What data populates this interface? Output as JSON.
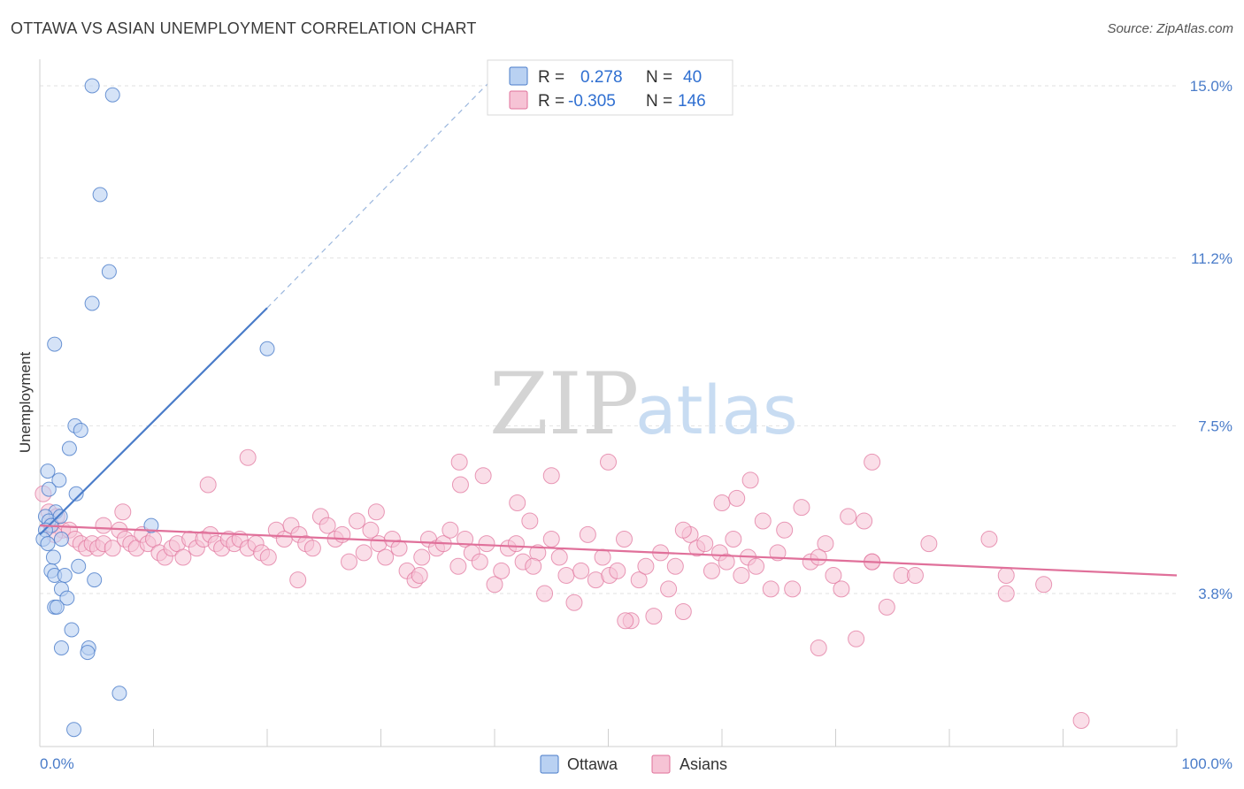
{
  "title": "OTTAWA VS ASIAN UNEMPLOYMENT CORRELATION CHART",
  "source": "Source: ZipAtlas.com",
  "watermark": {
    "zip": "ZIP",
    "atlas": "atlas"
  },
  "colors": {
    "ottawa": "#4a7cc9",
    "ottawa_fill": "#b9d1f2",
    "asians": "#e0709a",
    "asians_fill": "#f6c3d5",
    "tick_label": "#4a7cc9",
    "grid": "#e2e2e2"
  },
  "legend": {
    "rows": [
      {
        "r_label": "R =",
        "r_value": "0.278",
        "n_label": "N =",
        "n_value": "40"
      },
      {
        "r_label": "R =",
        "r_value": "-0.305",
        "n_label": "N =",
        "n_value": "146"
      }
    ]
  },
  "chart_data": {
    "type": "scatter",
    "title": "OTTAWA VS ASIAN UNEMPLOYMENT CORRELATION CHART",
    "xlabel": "",
    "ylabel": "Unemployment",
    "xlim": [
      0,
      100
    ],
    "ylim": [
      0,
      15.5
    ],
    "x_tick_labels": [
      "0.0%",
      "100.0%"
    ],
    "y_ticks": [
      3.8,
      7.5,
      11.2,
      15.0
    ],
    "y_tick_labels": [
      "3.8%",
      "7.5%",
      "11.2%",
      "15.0%"
    ],
    "grid": true,
    "legend_placement": "bottom-center",
    "series": [
      {
        "name": "Ottawa",
        "r": 0.278,
        "n": 40,
        "trend": {
          "x": [
            0.0,
            20.0
          ],
          "y": [
            5.1,
            10.1
          ],
          "dashed_to": {
            "x": 40.0,
            "y": 15.2
          }
        },
        "points": [
          [
            4.6,
            15.0
          ],
          [
            6.4,
            14.8
          ],
          [
            5.3,
            12.6
          ],
          [
            6.1,
            10.9
          ],
          [
            4.6,
            10.2
          ],
          [
            20.0,
            9.2
          ],
          [
            1.3,
            9.3
          ],
          [
            3.1,
            7.5
          ],
          [
            3.6,
            7.4
          ],
          [
            2.6,
            7.0
          ],
          [
            0.7,
            6.5
          ],
          [
            1.7,
            6.3
          ],
          [
            0.8,
            6.1
          ],
          [
            3.2,
            6.0
          ],
          [
            1.4,
            5.6
          ],
          [
            0.5,
            5.5
          ],
          [
            0.8,
            5.4
          ],
          [
            1.0,
            5.3
          ],
          [
            1.8,
            5.5
          ],
          [
            9.8,
            5.3
          ],
          [
            0.5,
            5.2
          ],
          [
            1.9,
            5.0
          ],
          [
            0.3,
            5.0
          ],
          [
            0.7,
            4.9
          ],
          [
            1.2,
            4.6
          ],
          [
            3.4,
            4.4
          ],
          [
            1.0,
            4.3
          ],
          [
            1.3,
            4.2
          ],
          [
            2.2,
            4.2
          ],
          [
            4.8,
            4.1
          ],
          [
            1.9,
            3.9
          ],
          [
            2.4,
            3.7
          ],
          [
            1.3,
            3.5
          ],
          [
            1.5,
            3.5
          ],
          [
            2.8,
            3.0
          ],
          [
            1.9,
            2.6
          ],
          [
            4.3,
            2.6
          ],
          [
            4.2,
            2.5
          ],
          [
            7.0,
            1.6
          ],
          [
            3.0,
            0.8
          ]
        ]
      },
      {
        "name": "Asians",
        "r": -0.305,
        "n": 146,
        "trend": {
          "x": [
            0.0,
            100.0
          ],
          "y": [
            5.3,
            4.2
          ]
        },
        "points": [
          [
            0.3,
            6.0
          ],
          [
            0.8,
            5.6
          ],
          [
            1.5,
            5.5
          ],
          [
            1.0,
            5.3
          ],
          [
            2.0,
            5.2
          ],
          [
            1.3,
            5.1
          ],
          [
            2.6,
            5.2
          ],
          [
            3.1,
            5.0
          ],
          [
            3.6,
            4.9
          ],
          [
            4.1,
            4.8
          ],
          [
            4.6,
            4.9
          ],
          [
            5.1,
            4.8
          ],
          [
            5.6,
            4.9
          ],
          [
            6.4,
            4.8
          ],
          [
            7.0,
            5.2
          ],
          [
            7.5,
            5.0
          ],
          [
            8.0,
            4.9
          ],
          [
            8.5,
            4.8
          ],
          [
            9.0,
            5.1
          ],
          [
            9.5,
            4.9
          ],
          [
            10.0,
            5.0
          ],
          [
            10.5,
            4.7
          ],
          [
            11.0,
            4.6
          ],
          [
            11.6,
            4.8
          ],
          [
            12.1,
            4.9
          ],
          [
            12.6,
            4.6
          ],
          [
            13.2,
            5.0
          ],
          [
            13.8,
            4.8
          ],
          [
            14.4,
            5.0
          ],
          [
            15.0,
            5.1
          ],
          [
            15.5,
            4.9
          ],
          [
            16.0,
            4.8
          ],
          [
            16.6,
            5.0
          ],
          [
            17.1,
            4.9
          ],
          [
            17.6,
            5.0
          ],
          [
            18.3,
            4.8
          ],
          [
            19.0,
            4.9
          ],
          [
            19.5,
            4.7
          ],
          [
            20.1,
            4.6
          ],
          [
            20.8,
            5.2
          ],
          [
            21.5,
            5.0
          ],
          [
            22.1,
            5.3
          ],
          [
            22.8,
            5.1
          ],
          [
            23.4,
            4.9
          ],
          [
            24.0,
            4.8
          ],
          [
            24.7,
            5.5
          ],
          [
            25.3,
            5.3
          ],
          [
            26.0,
            5.0
          ],
          [
            26.6,
            5.1
          ],
          [
            27.2,
            4.5
          ],
          [
            27.9,
            5.4
          ],
          [
            28.5,
            4.7
          ],
          [
            29.1,
            5.2
          ],
          [
            29.8,
            4.9
          ],
          [
            30.4,
            4.6
          ],
          [
            31.0,
            5.0
          ],
          [
            31.6,
            4.8
          ],
          [
            32.3,
            4.3
          ],
          [
            33.0,
            4.1
          ],
          [
            33.6,
            4.6
          ],
          [
            34.2,
            5.0
          ],
          [
            34.9,
            4.8
          ],
          [
            35.5,
            4.9
          ],
          [
            36.1,
            5.2
          ],
          [
            36.8,
            4.4
          ],
          [
            37.4,
            5.0
          ],
          [
            38.0,
            4.7
          ],
          [
            38.7,
            4.5
          ],
          [
            39.3,
            4.9
          ],
          [
            40.0,
            4.0
          ],
          [
            40.6,
            4.3
          ],
          [
            41.2,
            4.8
          ],
          [
            41.9,
            4.9
          ],
          [
            42.5,
            4.5
          ],
          [
            43.1,
            5.4
          ],
          [
            43.8,
            4.7
          ],
          [
            44.4,
            3.8
          ],
          [
            45.0,
            5.0
          ],
          [
            45.7,
            4.6
          ],
          [
            46.3,
            4.2
          ],
          [
            47.0,
            3.6
          ],
          [
            47.6,
            4.3
          ],
          [
            48.2,
            5.1
          ],
          [
            48.9,
            4.1
          ],
          [
            49.5,
            4.6
          ],
          [
            50.1,
            4.2
          ],
          [
            50.8,
            4.3
          ],
          [
            51.4,
            5.0
          ],
          [
            52.0,
            3.2
          ],
          [
            52.7,
            4.1
          ],
          [
            53.3,
            4.4
          ],
          [
            54.0,
            3.3
          ],
          [
            54.6,
            4.7
          ],
          [
            55.3,
            3.9
          ],
          [
            55.9,
            4.4
          ],
          [
            56.6,
            3.4
          ],
          [
            57.2,
            5.1
          ],
          [
            57.8,
            4.8
          ],
          [
            58.5,
            4.9
          ],
          [
            59.1,
            4.3
          ],
          [
            59.8,
            4.7
          ],
          [
            60.4,
            4.5
          ],
          [
            61.0,
            5.0
          ],
          [
            61.7,
            4.2
          ],
          [
            62.3,
            4.6
          ],
          [
            63.0,
            4.4
          ],
          [
            63.6,
            5.4
          ],
          [
            64.3,
            3.9
          ],
          [
            64.9,
            4.7
          ],
          [
            65.5,
            5.2
          ],
          [
            66.2,
            3.9
          ],
          [
            67.0,
            5.7
          ],
          [
            67.8,
            4.5
          ],
          [
            68.5,
            2.6
          ],
          [
            69.1,
            4.9
          ],
          [
            69.8,
            4.2
          ],
          [
            70.5,
            3.9
          ],
          [
            71.1,
            5.5
          ],
          [
            71.8,
            2.8
          ],
          [
            72.5,
            5.4
          ],
          [
            73.2,
            4.5
          ],
          [
            74.5,
            3.5
          ],
          [
            75.8,
            4.2
          ],
          [
            77.0,
            4.2
          ],
          [
            78.2,
            4.9
          ],
          [
            36.9,
            6.7
          ],
          [
            39.0,
            6.4
          ],
          [
            42.0,
            5.8
          ],
          [
            45.0,
            6.4
          ],
          [
            50.0,
            6.7
          ],
          [
            37.0,
            6.2
          ],
          [
            60.0,
            5.8
          ],
          [
            62.5,
            6.3
          ],
          [
            61.3,
            5.9
          ],
          [
            73.2,
            6.7
          ],
          [
            83.5,
            5.0
          ],
          [
            85.0,
            4.2
          ],
          [
            88.3,
            4.0
          ],
          [
            18.3,
            6.8
          ],
          [
            14.8,
            6.2
          ],
          [
            7.3,
            5.6
          ],
          [
            5.6,
            5.3
          ],
          [
            22.7,
            4.1
          ],
          [
            29.6,
            5.6
          ],
          [
            33.4,
            4.2
          ],
          [
            43.4,
            4.4
          ],
          [
            51.5,
            3.2
          ],
          [
            68.5,
            4.6
          ],
          [
            56.6,
            5.2
          ],
          [
            73.2,
            4.5
          ],
          [
            85.0,
            3.8
          ],
          [
            91.6,
            1.0
          ]
        ]
      }
    ]
  },
  "bottom_legend": [
    {
      "label": "Ottawa"
    },
    {
      "label": "Asians"
    }
  ]
}
